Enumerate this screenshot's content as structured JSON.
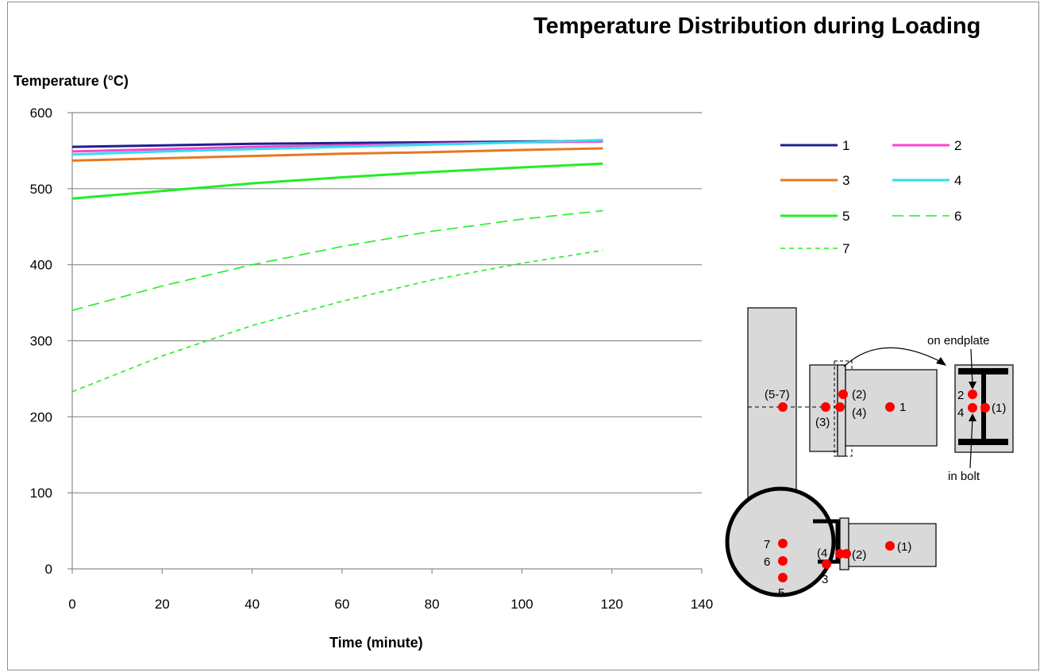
{
  "chart_data": {
    "type": "line",
    "title": "Temperature Distribution during Loading",
    "xlabel": "Time (minute)",
    "ylabel": "Temperature (°C)",
    "xlim": [
      0,
      140
    ],
    "ylim": [
      0,
      600
    ],
    "xticks": [
      0,
      20,
      40,
      60,
      80,
      100,
      120,
      140
    ],
    "yticks": [
      0,
      100,
      200,
      300,
      400,
      500,
      600
    ],
    "grid": "horizontal",
    "legend_position": "right",
    "series": [
      {
        "name": "1",
        "color": "#1f1f8f",
        "style": "solid",
        "x": [
          0,
          20,
          40,
          60,
          80,
          100,
          118
        ],
        "y": [
          555,
          557,
          559,
          560,
          561,
          562,
          563
        ]
      },
      {
        "name": "2",
        "color": "#ff44cc",
        "style": "solid",
        "x": [
          0,
          20,
          40,
          60,
          80,
          100,
          118
        ],
        "y": [
          549,
          552,
          555,
          557,
          559,
          561,
          562
        ]
      },
      {
        "name": "3",
        "color": "#e87722",
        "style": "solid",
        "x": [
          0,
          20,
          40,
          60,
          80,
          100,
          118
        ],
        "y": [
          537,
          540,
          543,
          546,
          548,
          551,
          553
        ]
      },
      {
        "name": "4",
        "color": "#33ddee",
        "style": "solid",
        "x": [
          0,
          20,
          40,
          60,
          80,
          100,
          118
        ],
        "y": [
          545,
          549,
          552,
          555,
          558,
          561,
          564
        ]
      },
      {
        "name": "5",
        "color": "#22ee22",
        "style": "solid",
        "x": [
          0,
          20,
          40,
          60,
          80,
          100,
          118
        ],
        "y": [
          487,
          497,
          507,
          515,
          522,
          528,
          533
        ]
      },
      {
        "name": "6",
        "color": "#22ee22",
        "style": "longdash",
        "x": [
          0,
          20,
          40,
          60,
          80,
          100,
          118
        ],
        "y": [
          340,
          372,
          400,
          424,
          444,
          460,
          471
        ]
      },
      {
        "name": "7",
        "color": "#22ee22",
        "style": "shortdash",
        "x": [
          0,
          20,
          40,
          60,
          80,
          100,
          118
        ],
        "y": [
          233,
          280,
          320,
          352,
          380,
          402,
          419
        ]
      }
    ]
  },
  "diagram": {
    "top_labels": {
      "p57": "(5-7)",
      "p3": "(3)",
      "p2": "(2)",
      "p4": "(4)",
      "p1": "1",
      "on_endplate": "on endplate",
      "in_bolt": "in bolt",
      "sec_2": "2",
      "sec_4": "4",
      "sec_1": "(1)"
    },
    "bottom_labels": {
      "p7": "7",
      "p6": "6",
      "p5": "5",
      "p4": "(4",
      "p3": "3",
      "p2": "(2)",
      "p1": "(1)"
    },
    "point_color": "#ff0000"
  }
}
